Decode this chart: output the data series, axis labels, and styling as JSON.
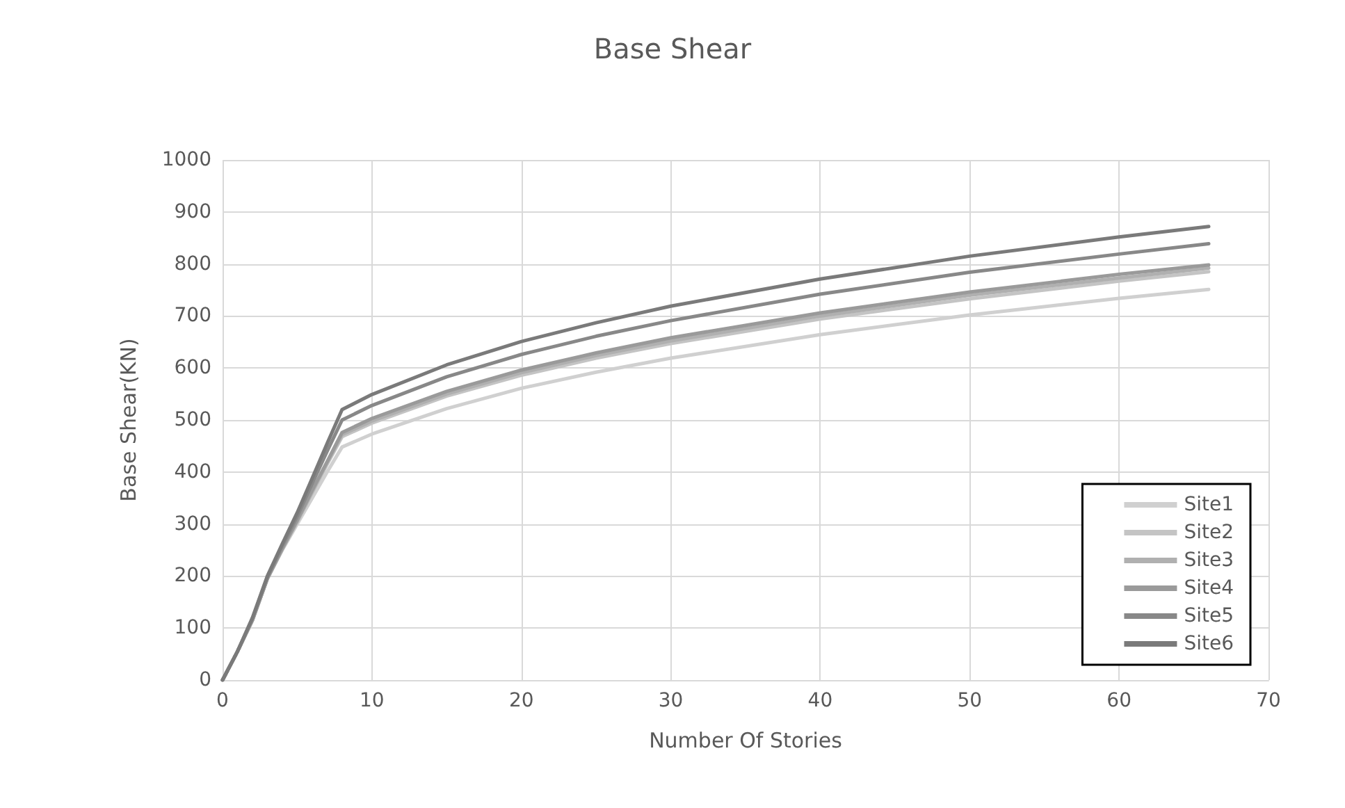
{
  "chart_data": {
    "type": "line",
    "title": "Base Shear",
    "xlabel": "Number Of Stories",
    "ylabel": "Base Shear(KN)",
    "x": [
      0,
      1,
      2,
      3,
      4,
      5,
      6,
      7,
      8,
      10,
      15,
      20,
      25,
      30,
      40,
      50,
      60,
      66
    ],
    "xlim": [
      0,
      70
    ],
    "xticks": [
      0,
      10,
      20,
      30,
      40,
      50,
      60,
      70
    ],
    "ylim": [
      0,
      1000
    ],
    "yticks": [
      0,
      100,
      200,
      300,
      400,
      500,
      600,
      700,
      800,
      900,
      1000
    ],
    "grid": true,
    "legend": "bottom right",
    "marker": "none",
    "line_style": "solid",
    "series": [
      {
        "name": "Site1",
        "color": "#d0d0d0",
        "values": [
          0,
          55,
          115,
          195,
          250,
          300,
          350,
          400,
          448,
          473,
          522,
          561,
          592,
          619,
          664,
          702,
          734,
          751
        ]
      },
      {
        "name": "Site2",
        "color": "#c4c4c4",
        "values": [
          0,
          55,
          115,
          195,
          252,
          305,
          360,
          415,
          468,
          494,
          546,
          586,
          619,
          647,
          694,
          733,
          767,
          785
        ]
      },
      {
        "name": "Site3",
        "color": "#b0b0b0",
        "values": [
          0,
          55,
          115,
          195,
          252,
          305,
          362,
          418,
          472,
          498,
          550,
          591,
          624,
          652,
          700,
          740,
          773,
          792
        ]
      },
      {
        "name": "Site4",
        "color": "#9a9a9a",
        "values": [
          0,
          55,
          115,
          195,
          253,
          308,
          365,
          420,
          476,
          503,
          555,
          596,
          629,
          658,
          706,
          746,
          780,
          798
        ]
      },
      {
        "name": "Site5",
        "color": "#888888",
        "values": [
          0,
          55,
          118,
          198,
          258,
          315,
          378,
          440,
          500,
          528,
          583,
          626,
          661,
          691,
          742,
          784,
          819,
          839
        ]
      },
      {
        "name": "Site6",
        "color": "#7a7a7a",
        "values": [
          0,
          55,
          120,
          200,
          262,
          322,
          388,
          455,
          520,
          549,
          606,
          651,
          687,
          719,
          771,
          815,
          852,
          872
        ]
      }
    ]
  }
}
